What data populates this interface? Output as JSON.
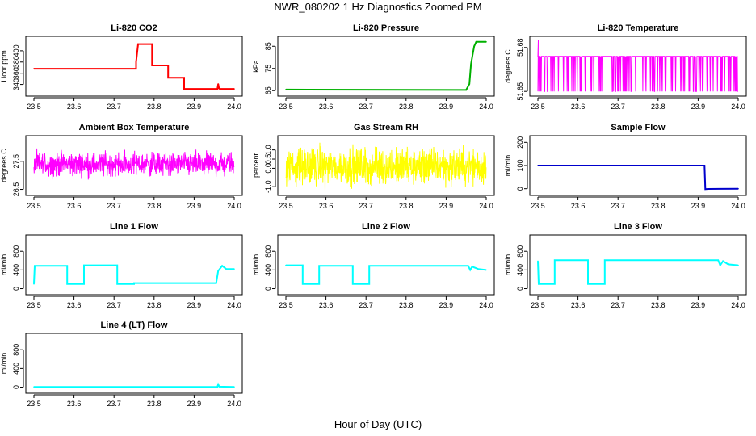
{
  "figure": {
    "title": "NWR_080202  1 Hz Diagnostics Zoomed PM",
    "xlabel": "Hour of Day (UTC)"
  },
  "chart_data": [
    {
      "type": "line",
      "title": "Li-820 CO2",
      "ylabel": "Licor ppm",
      "color": "#ff0000",
      "xlim": [
        23.5,
        24.0
      ],
      "ylim": [
        325,
        420
      ],
      "xticks": [
        "23.5",
        "23.6",
        "23.7",
        "23.8",
        "23.9",
        "24.0"
      ],
      "yticks": [
        "340",
        "360",
        "380",
        "400"
      ],
      "x": [
        23.5,
        23.755,
        23.755,
        23.76,
        23.76,
        23.795,
        23.795,
        23.835,
        23.835,
        23.875,
        23.875,
        23.958,
        23.96,
        23.962,
        23.964,
        24.0
      ],
      "y": [
        368,
        368,
        380,
        412,
        412,
        412,
        374,
        374,
        352,
        352,
        332,
        332,
        341,
        333,
        332,
        332
      ]
    },
    {
      "type": "line",
      "title": "Li-820 Pressure",
      "ylabel": "kPa",
      "color": "#00b000",
      "xlim": [
        23.5,
        24.0
      ],
      "ylim": [
        64,
        88
      ],
      "xticks": [
        "23.5",
        "23.6",
        "23.7",
        "23.8",
        "23.9",
        "24.0"
      ],
      "yticks": [
        "65",
        "75",
        "85"
      ],
      "x": [
        23.5,
        23.95,
        23.958,
        23.962,
        23.966,
        23.97,
        23.975,
        24.0
      ],
      "y": [
        65.5,
        65.3,
        68,
        77,
        81,
        85,
        87,
        87
      ]
    },
    {
      "type": "line",
      "title": "Li-820 Temperature",
      "ylabel": "degrees C",
      "color": "#ff00ff",
      "xlim": [
        23.5,
        24.0
      ],
      "ylim": [
        51.649,
        51.6854
      ],
      "xticks": [
        "23.5",
        "23.6",
        "23.7",
        "23.8",
        "23.9",
        "24.0"
      ],
      "yticks": [
        "51.65",
        "51.68"
      ],
      "levels": [
        51.65,
        51.674
      ],
      "note_values": "signal alternates between 51.65 and about 51.674 degrees C"
    },
    {
      "type": "line",
      "title": "Ambient Box Temperature",
      "ylabel": "degrees C",
      "color": "#ff00ff",
      "xlim": [
        23.5,
        24.0
      ],
      "ylim": [
        26.4,
        28.3
      ],
      "xticks": [
        "23.5",
        "23.6",
        "23.7",
        "23.8",
        "23.9",
        "24.0"
      ],
      "yticks": [
        "26.5",
        "27.5"
      ],
      "mean": 27.4,
      "spread": 0.45
    },
    {
      "type": "line",
      "title": "Gas Stream RH",
      "ylabel": "percent",
      "color": "#ffff00",
      "xlim": [
        23.5,
        24.0
      ],
      "ylim": [
        -1.3,
        1.6
      ],
      "xticks": [
        "23.5",
        "23.6",
        "23.7",
        "23.8",
        "23.9",
        "24.0"
      ],
      "yticks": [
        "-1.0",
        "0.0",
        "0.5",
        "1.0"
      ],
      "mean": 0.1,
      "spread": 1.1
    },
    {
      "type": "line",
      "title": "Sample Flow",
      "ylabel": "ml/min",
      "color": "#0000cc",
      "xlim": [
        23.5,
        24.0
      ],
      "ylim": [
        -15,
        215
      ],
      "xticks": [
        "23.5",
        "23.6",
        "23.7",
        "23.8",
        "23.9",
        "24.0"
      ],
      "yticks": [
        "0",
        "100",
        "200"
      ],
      "x": [
        23.5,
        23.916,
        23.918,
        23.925,
        24.0
      ],
      "y": [
        100,
        100,
        -2,
        -1,
        0
      ]
    },
    {
      "type": "line",
      "title": "Line 1 Flow",
      "ylabel": "ml/min",
      "color": "#00ffff",
      "xlim": [
        23.5,
        24.0
      ],
      "ylim": [
        -60,
        1080
      ],
      "xticks": [
        "23.5",
        "23.6",
        "23.7",
        "23.8",
        "23.9",
        "24.0"
      ],
      "yticks": [
        "0",
        "400",
        "800"
      ],
      "x": [
        23.5,
        23.502,
        23.583,
        23.583,
        23.625,
        23.625,
        23.708,
        23.708,
        23.75,
        23.75,
        23.955,
        23.96,
        23.97,
        23.98,
        24.0
      ],
      "y": [
        100,
        490,
        490,
        100,
        100,
        500,
        500,
        100,
        100,
        120,
        120,
        380,
        490,
        420,
        420
      ]
    },
    {
      "type": "line",
      "title": "Line 2 Flow",
      "ylabel": "ml/min",
      "color": "#00ffff",
      "xlim": [
        23.5,
        24.0
      ],
      "ylim": [
        -60,
        1080
      ],
      "xticks": [
        "23.5",
        "23.6",
        "23.7",
        "23.8",
        "23.9",
        "24.0"
      ],
      "yticks": [
        "0",
        "400",
        "800"
      ],
      "x": [
        23.5,
        23.542,
        23.542,
        23.583,
        23.583,
        23.667,
        23.667,
        23.708,
        23.708,
        23.955,
        23.96,
        23.965,
        23.98,
        24.0
      ],
      "y": [
        500,
        500,
        100,
        100,
        490,
        490,
        100,
        100,
        490,
        490,
        400,
        470,
        420,
        400
      ]
    },
    {
      "type": "line",
      "title": "Line 3 Flow",
      "ylabel": "ml/min",
      "color": "#00ffff",
      "xlim": [
        23.5,
        24.0
      ],
      "ylim": [
        -60,
        1080
      ],
      "xticks": [
        "23.5",
        "23.6",
        "23.7",
        "23.8",
        "23.9",
        "24.0"
      ],
      "yticks": [
        "0",
        "400",
        "800"
      ],
      "x": [
        23.5,
        23.502,
        23.505,
        23.542,
        23.542,
        23.625,
        23.625,
        23.667,
        23.667,
        23.95,
        23.955,
        23.962,
        23.975,
        24.0
      ],
      "y": [
        590,
        100,
        100,
        100,
        610,
        610,
        100,
        100,
        610,
        610,
        500,
        590,
        520,
        500
      ]
    },
    {
      "type": "line",
      "title": "Line 4 (LT) Flow",
      "ylabel": "ml/min",
      "color": "#00ffff",
      "xlim": [
        23.5,
        24.0
      ],
      "ylim": [
        -60,
        1080
      ],
      "xticks": [
        "23.5",
        "23.6",
        "23.7",
        "23.8",
        "23.9",
        "24.0"
      ],
      "yticks": [
        "0",
        "400",
        "800"
      ],
      "x": [
        23.5,
        23.958,
        23.96,
        23.963,
        24.0
      ],
      "y": [
        5,
        5,
        60,
        10,
        5
      ]
    }
  ]
}
